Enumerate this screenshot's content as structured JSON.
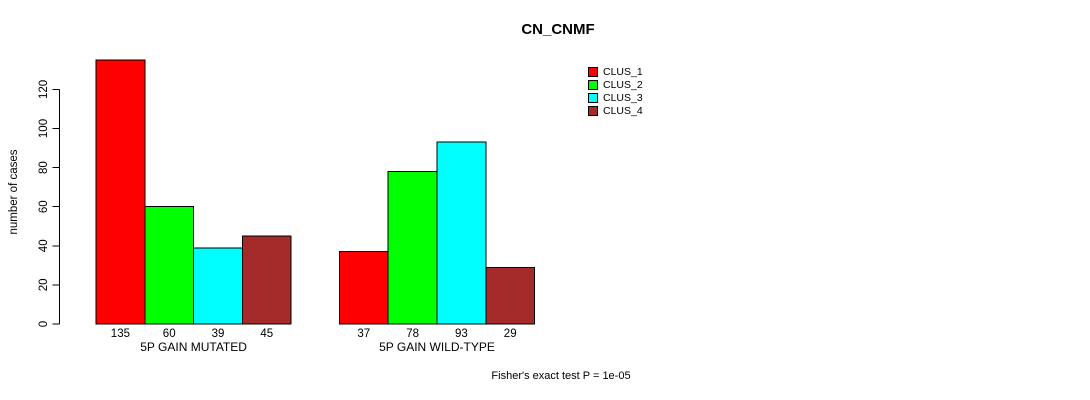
{
  "chart_data": {
    "type": "bar",
    "title": "CN_CNMF",
    "ylabel": "number of cases",
    "xlabel": "",
    "ylim": [
      0,
      135
    ],
    "yticks": [
      0,
      20,
      40,
      60,
      80,
      100,
      120
    ],
    "grid": false,
    "legend_position": "top-right-outside",
    "bar_value_labels": true,
    "series": [
      {
        "name": "CLUS_1",
        "color": "#FF0000"
      },
      {
        "name": "CLUS_2",
        "color": "#00FF00"
      },
      {
        "name": "CLUS_3",
        "color": "#00FFFF"
      },
      {
        "name": "CLUS_4",
        "color": "#A52A2A"
      }
    ],
    "groups": [
      {
        "label": "5P GAIN MUTATED",
        "values": [
          135,
          60,
          39,
          45
        ]
      },
      {
        "label": "5P GAIN WILD-TYPE",
        "values": [
          37,
          78,
          93,
          29
        ]
      }
    ],
    "annotation": "Fisher's exact test P = 1e-05"
  }
}
